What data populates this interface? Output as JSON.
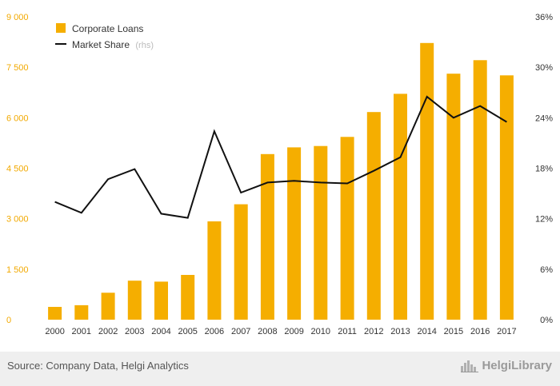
{
  "chart_data": {
    "type": "bar",
    "categories": [
      "2000",
      "2001",
      "2002",
      "2003",
      "2004",
      "2005",
      "2006",
      "2007",
      "2008",
      "2009",
      "2010",
      "2011",
      "2012",
      "2013",
      "2014",
      "2015",
      "2016",
      "2017"
    ],
    "series": [
      {
        "name": "Corporate Loans",
        "type": "bar",
        "axis": "left",
        "color": "#f5ae00",
        "values": [
          380,
          430,
          800,
          1160,
          1130,
          1330,
          2920,
          3430,
          4920,
          5120,
          5160,
          5430,
          6170,
          6710,
          8220,
          7310,
          7710,
          7260
        ]
      },
      {
        "name": "Market Share",
        "name_suffix": "(rhs)",
        "type": "line",
        "axis": "right",
        "color": "#111111",
        "values": [
          14.0,
          12.7,
          16.7,
          17.9,
          12.6,
          12.1,
          22.4,
          15.1,
          16.3,
          16.5,
          16.3,
          16.2,
          17.7,
          19.3,
          26.5,
          24.0,
          25.4,
          23.5
        ]
      }
    ],
    "y_left": {
      "ylim": [
        0,
        9000
      ],
      "ticks": [
        0,
        1500,
        3000,
        4500,
        6000,
        7500,
        9000
      ],
      "tick_labels": [
        "0",
        "1 500",
        "3 000",
        "4 500",
        "6 000",
        "7 500",
        "9 000"
      ],
      "color": "#f2a900"
    },
    "y_right": {
      "ylim": [
        0,
        36
      ],
      "ticks": [
        0,
        6,
        12,
        18,
        24,
        30,
        36
      ],
      "tick_labels": [
        "0%",
        "6%",
        "12%",
        "18%",
        "24%",
        "30%",
        "36%"
      ]
    },
    "legend": {
      "position": "top-left"
    },
    "grid": false
  },
  "footer": {
    "source": "Source: Company Data, Helgi Analytics",
    "brand": "HelgiLibrary",
    "brand_icon": "city-skyline-icon"
  }
}
